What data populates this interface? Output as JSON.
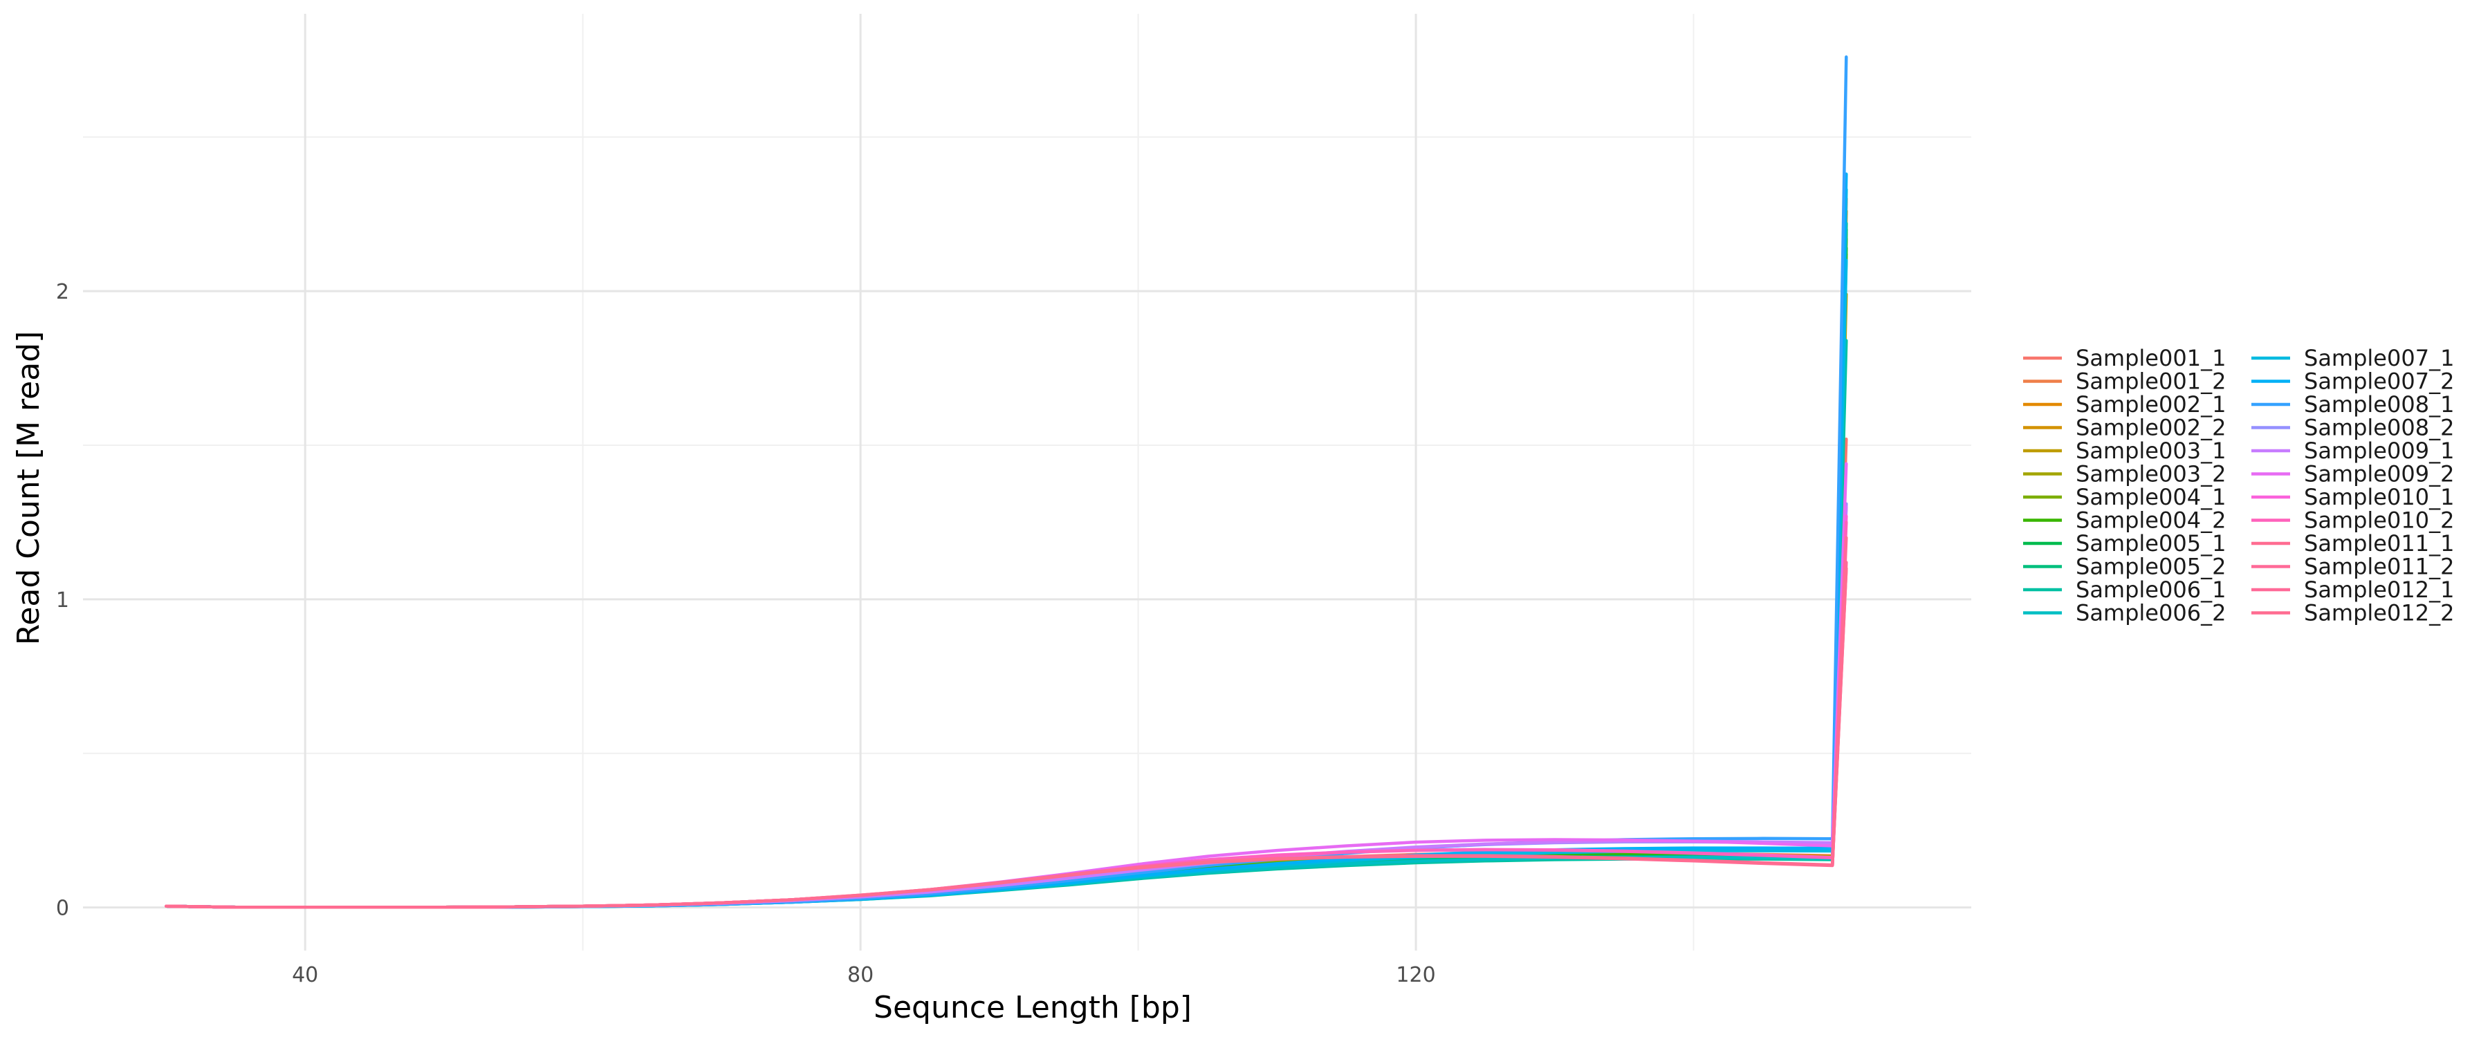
{
  "chart_data": {
    "type": "line",
    "title": "",
    "xlabel": "Sequnce Length [bp]",
    "ylabel": "Read Count [M read]",
    "xlim": [
      24,
      160
    ],
    "ylim": [
      -0.14,
      2.9
    ],
    "x_ticks": [
      40,
      80,
      120
    ],
    "y_ticks": [
      0,
      1,
      2
    ],
    "grid": true,
    "legend_position": "right",
    "legend_columns": 2,
    "x": [
      30,
      35,
      40,
      45,
      50,
      55,
      60,
      65,
      70,
      75,
      80,
      85,
      90,
      95,
      100,
      105,
      110,
      115,
      120,
      125,
      130,
      135,
      140,
      145,
      150,
      151
    ],
    "series": [
      {
        "name": "Sample001_1",
        "color": "#F8766D",
        "values": [
          0.004,
          0.001,
          0.001,
          0.001,
          0.001,
          0.002,
          0.004,
          0.008,
          0.014,
          0.024,
          0.036,
          0.052,
          0.074,
          0.098,
          0.122,
          0.142,
          0.155,
          0.165,
          0.172,
          0.176,
          0.178,
          0.178,
          0.176,
          0.172,
          0.168,
          1.52
        ]
      },
      {
        "name": "Sample001_2",
        "color": "#EF7F49",
        "values": [
          0.004,
          0.001,
          0.001,
          0.001,
          0.001,
          0.002,
          0.004,
          0.008,
          0.014,
          0.024,
          0.036,
          0.052,
          0.073,
          0.096,
          0.12,
          0.14,
          0.153,
          0.163,
          0.17,
          0.174,
          0.176,
          0.176,
          0.175,
          0.171,
          0.167,
          2.3
        ]
      },
      {
        "name": "Sample002_1",
        "color": "#E38900",
        "values": [
          0.004,
          0.001,
          0.001,
          0.001,
          0.001,
          0.002,
          0.004,
          0.007,
          0.013,
          0.022,
          0.034,
          0.05,
          0.07,
          0.093,
          0.116,
          0.136,
          0.15,
          0.16,
          0.168,
          0.172,
          0.174,
          0.175,
          0.174,
          0.17,
          0.166,
          2.26
        ]
      },
      {
        "name": "Sample002_2",
        "color": "#D39200",
        "values": [
          0.004,
          0.001,
          0.001,
          0.001,
          0.001,
          0.002,
          0.004,
          0.007,
          0.013,
          0.022,
          0.034,
          0.049,
          0.069,
          0.092,
          0.115,
          0.135,
          0.149,
          0.159,
          0.167,
          0.171,
          0.173,
          0.174,
          0.173,
          0.169,
          0.165,
          2.2
        ]
      },
      {
        "name": "Sample003_1",
        "color": "#BE9C00",
        "values": [
          0.004,
          0.001,
          0.001,
          0.001,
          0.001,
          0.002,
          0.004,
          0.007,
          0.013,
          0.021,
          0.033,
          0.048,
          0.068,
          0.09,
          0.113,
          0.133,
          0.147,
          0.158,
          0.166,
          0.17,
          0.172,
          0.173,
          0.172,
          0.168,
          0.164,
          1.99
        ]
      },
      {
        "name": "Sample003_2",
        "color": "#A3A500",
        "values": [
          0.004,
          0.001,
          0.001,
          0.001,
          0.001,
          0.002,
          0.004,
          0.007,
          0.012,
          0.021,
          0.032,
          0.047,
          0.067,
          0.089,
          0.112,
          0.132,
          0.146,
          0.157,
          0.165,
          0.169,
          0.171,
          0.172,
          0.171,
          0.167,
          0.163,
          2.12
        ]
      },
      {
        "name": "Sample004_1",
        "color": "#7CAE00",
        "values": [
          0.004,
          0.001,
          0.001,
          0.001,
          0.001,
          0.002,
          0.004,
          0.007,
          0.012,
          0.02,
          0.031,
          0.046,
          0.065,
          0.087,
          0.11,
          0.13,
          0.145,
          0.156,
          0.164,
          0.169,
          0.171,
          0.172,
          0.171,
          0.167,
          0.163,
          2.17
        ]
      },
      {
        "name": "Sample004_2",
        "color": "#39B600",
        "values": [
          0.004,
          0.001,
          0.001,
          0.001,
          0.001,
          0.002,
          0.003,
          0.006,
          0.012,
          0.02,
          0.031,
          0.045,
          0.064,
          0.086,
          0.108,
          0.128,
          0.143,
          0.154,
          0.163,
          0.168,
          0.17,
          0.171,
          0.17,
          0.166,
          0.162,
          2.14
        ]
      },
      {
        "name": "Sample005_1",
        "color": "#00BB4E",
        "values": [
          0.004,
          0.001,
          0.001,
          0.001,
          0.001,
          0.002,
          0.003,
          0.006,
          0.011,
          0.019,
          0.029,
          0.043,
          0.061,
          0.082,
          0.103,
          0.122,
          0.137,
          0.148,
          0.157,
          0.162,
          0.165,
          0.166,
          0.166,
          0.163,
          0.16,
          2.2
        ]
      },
      {
        "name": "Sample005_2",
        "color": "#00BF7D",
        "values": [
          0.004,
          0.001,
          0.001,
          0.001,
          0.001,
          0.002,
          0.003,
          0.006,
          0.011,
          0.019,
          0.029,
          0.042,
          0.06,
          0.08,
          0.101,
          0.12,
          0.135,
          0.146,
          0.155,
          0.16,
          0.163,
          0.164,
          0.164,
          0.161,
          0.158,
          2.22
        ]
      },
      {
        "name": "Sample006_1",
        "color": "#00C1A3",
        "values": [
          0.004,
          0.001,
          0.001,
          0.001,
          0.001,
          0.001,
          0.003,
          0.005,
          0.01,
          0.017,
          0.026,
          0.038,
          0.055,
          0.073,
          0.093,
          0.111,
          0.125,
          0.136,
          0.145,
          0.151,
          0.155,
          0.157,
          0.158,
          0.157,
          0.155,
          1.84
        ]
      },
      {
        "name": "Sample006_2",
        "color": "#00BFC4",
        "values": [
          0.004,
          0.001,
          0.001,
          0.001,
          0.001,
          0.001,
          0.003,
          0.005,
          0.01,
          0.017,
          0.026,
          0.039,
          0.056,
          0.075,
          0.096,
          0.114,
          0.129,
          0.141,
          0.15,
          0.156,
          0.16,
          0.162,
          0.163,
          0.161,
          0.159,
          2.33
        ]
      },
      {
        "name": "Sample007_1",
        "color": "#00BAE0",
        "values": [
          0.004,
          0.001,
          0.001,
          0.001,
          0.001,
          0.001,
          0.003,
          0.005,
          0.01,
          0.017,
          0.027,
          0.04,
          0.058,
          0.078,
          0.1,
          0.12,
          0.137,
          0.151,
          0.163,
          0.172,
          0.178,
          0.182,
          0.184,
          0.184,
          0.183,
          2.1
        ]
      },
      {
        "name": "Sample007_2",
        "color": "#00B0F6",
        "values": [
          0.004,
          0.001,
          0.001,
          0.001,
          0.001,
          0.001,
          0.003,
          0.005,
          0.01,
          0.017,
          0.027,
          0.041,
          0.059,
          0.08,
          0.103,
          0.124,
          0.142,
          0.157,
          0.17,
          0.18,
          0.187,
          0.191,
          0.193,
          0.193,
          0.192,
          2.38
        ]
      },
      {
        "name": "Sample008_1",
        "color": "#35A2FF",
        "values": [
          0.004,
          0.001,
          0.001,
          0.001,
          0.001,
          0.001,
          0.003,
          0.006,
          0.011,
          0.018,
          0.029,
          0.044,
          0.064,
          0.087,
          0.112,
          0.136,
          0.157,
          0.176,
          0.192,
          0.205,
          0.214,
          0.22,
          0.223,
          0.224,
          0.223,
          2.76
        ]
      },
      {
        "name": "Sample008_2",
        "color": "#9590FF",
        "values": [
          0.004,
          0.001,
          0.001,
          0.001,
          0.001,
          0.002,
          0.004,
          0.007,
          0.013,
          0.022,
          0.034,
          0.05,
          0.071,
          0.095,
          0.12,
          0.143,
          0.163,
          0.18,
          0.194,
          0.204,
          0.21,
          0.213,
          0.213,
          0.211,
          0.208,
          1.31
        ]
      },
      {
        "name": "Sample009_1",
        "color": "#C77CFF",
        "values": [
          0.004,
          0.001,
          0.001,
          0.001,
          0.001,
          0.002,
          0.004,
          0.007,
          0.013,
          0.022,
          0.034,
          0.05,
          0.071,
          0.095,
          0.121,
          0.145,
          0.165,
          0.182,
          0.196,
          0.206,
          0.212,
          0.215,
          0.215,
          0.213,
          0.21,
          1.3
        ]
      },
      {
        "name": "Sample009_2",
        "color": "#E76BF3",
        "values": [
          0.004,
          0.001,
          0.001,
          0.001,
          0.001,
          0.002,
          0.004,
          0.008,
          0.015,
          0.025,
          0.039,
          0.058,
          0.082,
          0.11,
          0.14,
          0.166,
          0.185,
          0.2,
          0.212,
          0.218,
          0.22,
          0.219,
          0.215,
          0.208,
          0.2,
          1.44
        ]
      },
      {
        "name": "Sample010_1",
        "color": "#FA62DB",
        "values": [
          0.004,
          0.001,
          0.001,
          0.001,
          0.001,
          0.002,
          0.004,
          0.008,
          0.015,
          0.025,
          0.039,
          0.057,
          0.08,
          0.106,
          0.133,
          0.155,
          0.17,
          0.18,
          0.186,
          0.188,
          0.187,
          0.183,
          0.177,
          0.17,
          0.162,
          1.27
        ]
      },
      {
        "name": "Sample010_2",
        "color": "#FF62BC",
        "values": [
          0.004,
          0.001,
          0.001,
          0.001,
          0.001,
          0.002,
          0.004,
          0.008,
          0.015,
          0.025,
          0.039,
          0.057,
          0.08,
          0.106,
          0.132,
          0.154,
          0.169,
          0.179,
          0.185,
          0.187,
          0.186,
          0.182,
          0.176,
          0.169,
          0.161,
          1.25
        ]
      },
      {
        "name": "Sample011_1",
        "color": "#FF6C91",
        "values": [
          0.004,
          0.001,
          0.001,
          0.001,
          0.001,
          0.002,
          0.004,
          0.008,
          0.015,
          0.025,
          0.04,
          0.058,
          0.081,
          0.106,
          0.13,
          0.148,
          0.159,
          0.165,
          0.168,
          0.168,
          0.165,
          0.16,
          0.153,
          0.145,
          0.138,
          1.1
        ]
      },
      {
        "name": "Sample011_2",
        "color": "#FF6A98",
        "values": [
          0.004,
          0.001,
          0.001,
          0.001,
          0.001,
          0.002,
          0.004,
          0.008,
          0.015,
          0.025,
          0.039,
          0.057,
          0.08,
          0.105,
          0.129,
          0.147,
          0.158,
          0.164,
          0.167,
          0.167,
          0.164,
          0.159,
          0.152,
          0.144,
          0.137,
          1.12
        ]
      },
      {
        "name": "Sample012_1",
        "color": "#FF6A98",
        "values": [
          0.004,
          0.001,
          0.001,
          0.001,
          0.001,
          0.002,
          0.004,
          0.008,
          0.015,
          0.025,
          0.039,
          0.057,
          0.079,
          0.104,
          0.128,
          0.146,
          0.157,
          0.163,
          0.166,
          0.166,
          0.163,
          0.158,
          0.151,
          0.143,
          0.136,
          1.2
        ]
      },
      {
        "name": "Sample012_2",
        "color": "#FF6C91",
        "values": [
          0.004,
          0.001,
          0.001,
          0.001,
          0.001,
          0.002,
          0.004,
          0.008,
          0.015,
          0.025,
          0.04,
          0.058,
          0.08,
          0.105,
          0.129,
          0.147,
          0.158,
          0.164,
          0.167,
          0.167,
          0.164,
          0.159,
          0.152,
          0.144,
          0.137,
          1.1
        ]
      }
    ]
  }
}
